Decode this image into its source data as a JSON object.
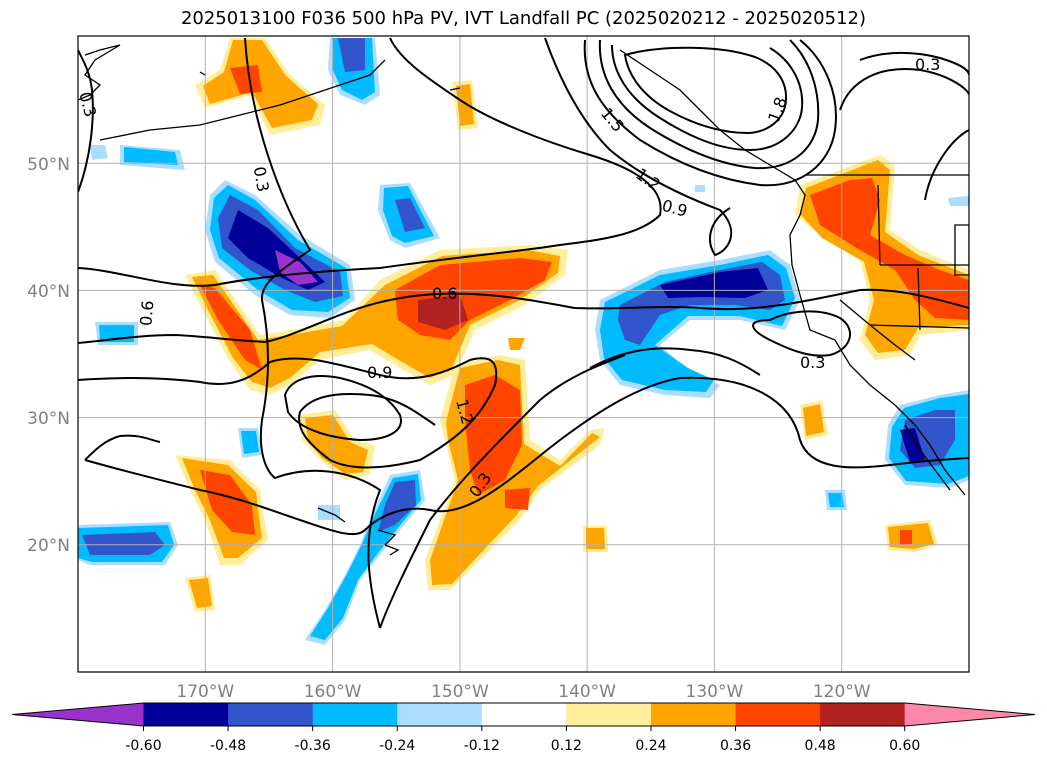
{
  "title": "2025013100 F036 500 hPa PV, IVT Landfall PC (2025020212 - 2025020512)",
  "map": {
    "lon_range": [
      -180,
      -110
    ],
    "lat_range": [
      10,
      60
    ],
    "lat_ticks": [
      {
        "value": 20,
        "label": "20°N"
      },
      {
        "value": 30,
        "label": "30°N"
      },
      {
        "value": 40,
        "label": "40°N"
      },
      {
        "value": 50,
        "label": "50°N"
      }
    ],
    "lon_ticks": [
      {
        "value": -170,
        "label": "170°W"
      },
      {
        "value": -160,
        "label": "160°W"
      },
      {
        "value": -150,
        "label": "150°W"
      },
      {
        "value": -140,
        "label": "140°W"
      },
      {
        "value": -130,
        "label": "130°W"
      },
      {
        "value": -120,
        "label": "120°W"
      }
    ],
    "grid": true,
    "contour_labels": [
      "0.3",
      "0.6",
      "0.9",
      "1.2",
      "1.5",
      "1.8"
    ]
  },
  "colorbar": {
    "levels": [
      "-0.60",
      "-0.48",
      "-0.36",
      "-0.24",
      "-0.12",
      "0.12",
      "0.24",
      "0.36",
      "0.48",
      "0.60"
    ],
    "colors": [
      "#9933cc",
      "#000099",
      "#3355cc",
      "#00bbff",
      "#aaddff",
      "#ffffff",
      "#ffee99",
      "#ffa500",
      "#ff4400",
      "#b22222",
      "#ff88aa"
    ]
  }
}
